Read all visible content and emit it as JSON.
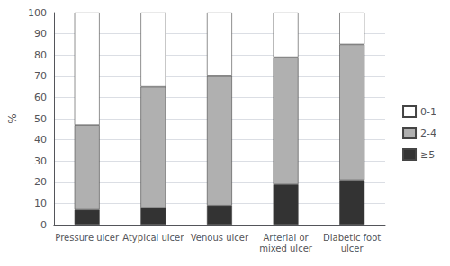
{
  "chart_data": {
    "type": "bar",
    "stacked": true,
    "categories": [
      "Pressure ulcer",
      "Atypical ulcer",
      "Venous ulcer",
      "Arterial or\nmixed ulcer",
      "Diabetic foot\nulcer"
    ],
    "series": [
      {
        "name": "≥5",
        "color": "#333333",
        "values": [
          7,
          8,
          9,
          19,
          21
        ]
      },
      {
        "name": "2-4",
        "color": "#b0b0b0",
        "values": [
          40,
          57,
          61,
          60,
          64
        ]
      },
      {
        "name": "0-1",
        "color": "#ffffff",
        "values": [
          53,
          35,
          30,
          21,
          15
        ]
      }
    ],
    "ylabel": "%",
    "ylim": [
      0,
      100
    ],
    "yticks": [
      0,
      10,
      20,
      30,
      40,
      50,
      60,
      70,
      80,
      90,
      100
    ],
    "grid": true,
    "legend": "right"
  }
}
